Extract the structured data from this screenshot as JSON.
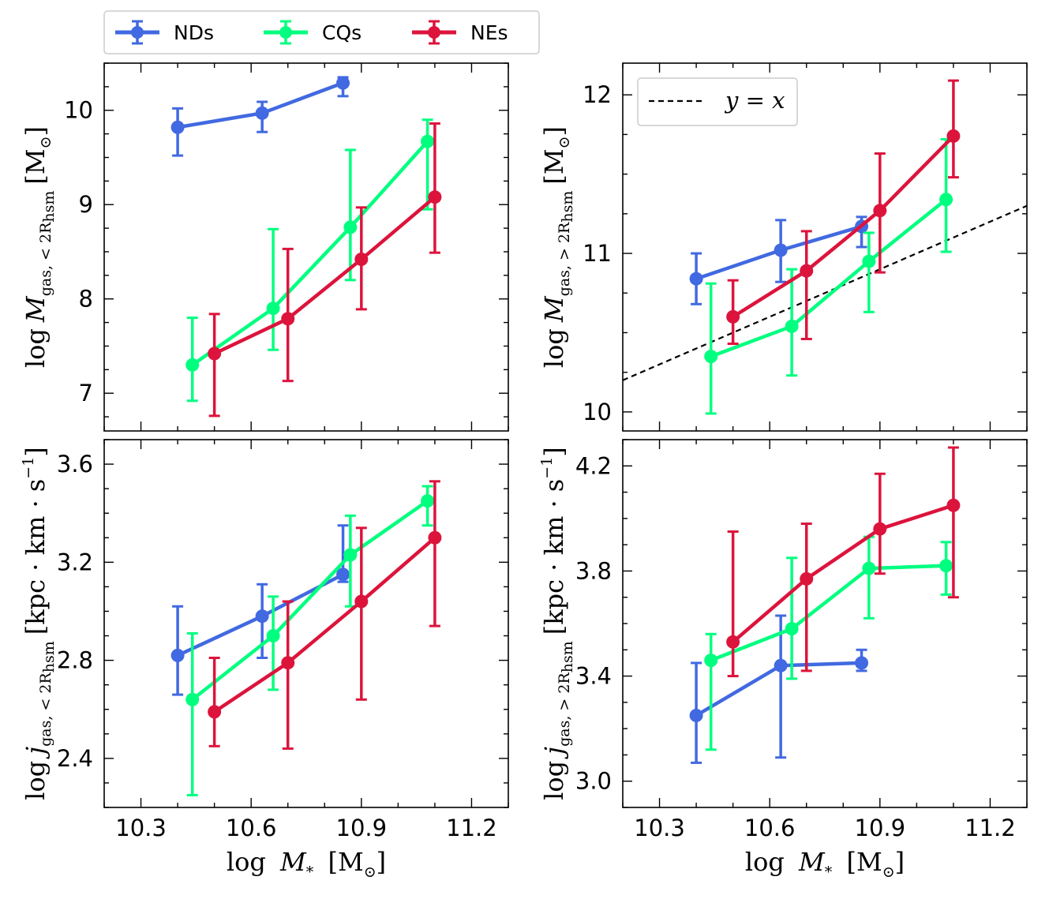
{
  "legend": {
    "entries": [
      {
        "name": "NDs",
        "color": "#4169e1"
      },
      {
        "name": "CQs",
        "color": "#00ff7f"
      },
      {
        "name": "NEs",
        "color": "#dc143c"
      }
    ]
  },
  "xlabel": {
    "pre": "log",
    "var": "M",
    "sub": "*",
    "unit": "[M",
    "unit_sub": "⊙",
    "unit_close": "]"
  },
  "chart_data": [
    {
      "type": "line",
      "id": "top-left",
      "xlim": [
        10.2,
        11.3
      ],
      "ylim": [
        6.6,
        10.5
      ],
      "xticks": [
        "10.3",
        "10.6",
        "10.9",
        "11.2"
      ],
      "xtick_values": [
        10.3,
        10.6,
        10.9,
        11.2
      ],
      "yticks": [
        "7",
        "8",
        "9",
        "10"
      ],
      "ytick_values": [
        7,
        8,
        9,
        10
      ],
      "show_xticklabels": false,
      "ylabel": {
        "pre": "log",
        "var": "M",
        "sub": "gas, < 2R",
        "subsub": "hsm",
        "unit": "[M",
        "unit_sub": "⊙",
        "unit_close": "]"
      },
      "series": [
        {
          "name": "NDs",
          "color": "#4169e1",
          "x": [
            10.4,
            10.63,
            10.85
          ],
          "y": [
            9.82,
            9.97,
            10.29
          ],
          "err_lo": [
            0.3,
            0.2,
            0.14
          ],
          "err_hi": [
            0.2,
            0.12,
            0.06
          ]
        },
        {
          "name": "CQs",
          "color": "#00ff7f",
          "x": [
            10.44,
            10.66,
            10.87,
            11.08
          ],
          "y": [
            7.3,
            7.9,
            8.76,
            9.67
          ],
          "err_lo": [
            0.38,
            0.44,
            0.56,
            0.72
          ],
          "err_hi": [
            0.5,
            0.84,
            0.82,
            0.23
          ]
        },
        {
          "name": "NEs",
          "color": "#dc143c",
          "x": [
            10.5,
            10.7,
            10.9,
            11.1
          ],
          "y": [
            7.42,
            7.79,
            8.42,
            9.08
          ],
          "err_lo": [
            0.66,
            0.66,
            0.53,
            0.59
          ],
          "err_hi": [
            0.42,
            0.74,
            0.55,
            0.78
          ]
        }
      ]
    },
    {
      "type": "line",
      "id": "top-right",
      "xlim": [
        10.2,
        11.3
      ],
      "ylim": [
        9.88,
        12.2
      ],
      "xticks": [
        "10.3",
        "10.6",
        "10.9",
        "11.2"
      ],
      "xtick_values": [
        10.3,
        10.6,
        10.9,
        11.2
      ],
      "yticks": [
        "10",
        "11",
        "12"
      ],
      "ytick_values": [
        10,
        11,
        12
      ],
      "show_xticklabels": false,
      "ylabel": {
        "pre": "log",
        "var": "M",
        "sub": "gas, > 2R",
        "subsub": "hsm",
        "unit": "[M",
        "unit_sub": "⊙",
        "unit_close": "]"
      },
      "reference_line": {
        "label": "y = x",
        "x": [
          10.2,
          11.3
        ],
        "y": [
          10.2,
          11.3
        ]
      },
      "series": [
        {
          "name": "NDs",
          "color": "#4169e1",
          "x": [
            10.4,
            10.63,
            10.85
          ],
          "y": [
            10.84,
            11.02,
            11.17
          ],
          "err_lo": [
            0.16,
            0.2,
            0.13
          ],
          "err_hi": [
            0.16,
            0.19,
            0.06
          ]
        },
        {
          "name": "CQs",
          "color": "#00ff7f",
          "x": [
            10.44,
            10.66,
            10.87,
            11.08
          ],
          "y": [
            10.35,
            10.54,
            10.95,
            11.34
          ],
          "err_lo": [
            0.36,
            0.31,
            0.32,
            0.33
          ],
          "err_hi": [
            0.46,
            0.36,
            0.18,
            0.38
          ]
        },
        {
          "name": "NEs",
          "color": "#dc143c",
          "x": [
            10.5,
            10.7,
            10.9,
            11.1
          ],
          "y": [
            10.6,
            10.89,
            11.27,
            11.74
          ],
          "err_lo": [
            0.17,
            0.43,
            0.39,
            0.26
          ],
          "err_hi": [
            0.23,
            0.25,
            0.36,
            0.35
          ]
        }
      ]
    },
    {
      "type": "line",
      "id": "bottom-left",
      "xlim": [
        10.2,
        11.3
      ],
      "ylim": [
        2.2,
        3.7
      ],
      "xticks": [
        "10.3",
        "10.6",
        "10.9",
        "11.2"
      ],
      "xtick_values": [
        10.3,
        10.6,
        10.9,
        11.2
      ],
      "yticks": [
        "2.4",
        "2.8",
        "3.2",
        "3.6"
      ],
      "ytick_values": [
        2.4,
        2.8,
        3.2,
        3.6
      ],
      "show_xticklabels": true,
      "ylabel": {
        "pre": "log",
        "var": "j",
        "sub": "gas, < 2R",
        "subsub": "hsm",
        "unit": "[kpc · km · s",
        "unit_sup": "−1",
        "unit_close": "]"
      },
      "series": [
        {
          "name": "NDs",
          "color": "#4169e1",
          "x": [
            10.4,
            10.63,
            10.85
          ],
          "y": [
            2.82,
            2.98,
            3.15
          ],
          "err_lo": [
            0.16,
            0.17,
            0.03
          ],
          "err_hi": [
            0.2,
            0.13,
            0.2
          ]
        },
        {
          "name": "CQs",
          "color": "#00ff7f",
          "x": [
            10.44,
            10.66,
            10.87,
            11.08
          ],
          "y": [
            2.64,
            2.9,
            3.23,
            3.45
          ],
          "err_lo": [
            0.39,
            0.22,
            0.21,
            0.1
          ],
          "err_hi": [
            0.27,
            0.16,
            0.16,
            0.06
          ]
        },
        {
          "name": "NEs",
          "color": "#dc143c",
          "x": [
            10.5,
            10.7,
            10.9,
            11.1
          ],
          "y": [
            2.59,
            2.79,
            3.04,
            3.3
          ],
          "err_lo": [
            0.14,
            0.35,
            0.4,
            0.36
          ],
          "err_hi": [
            0.22,
            0.25,
            0.3,
            0.23
          ]
        }
      ]
    },
    {
      "type": "line",
      "id": "bottom-right",
      "xlim": [
        10.2,
        11.3
      ],
      "ylim": [
        2.9,
        4.3
      ],
      "xticks": [
        "10.3",
        "10.6",
        "10.9",
        "11.2"
      ],
      "xtick_values": [
        10.3,
        10.6,
        10.9,
        11.2
      ],
      "yticks": [
        "3.0",
        "3.4",
        "3.8",
        "4.2"
      ],
      "ytick_values": [
        3.0,
        3.4,
        3.8,
        4.2
      ],
      "show_xticklabels": true,
      "ylabel": {
        "pre": "log",
        "var": "j",
        "sub": "gas, > 2R",
        "subsub": "hsm",
        "unit": "[kpc · km · s",
        "unit_sup": "−1",
        "unit_close": "]"
      },
      "series": [
        {
          "name": "NDs",
          "color": "#4169e1",
          "x": [
            10.4,
            10.63,
            10.85
          ],
          "y": [
            3.25,
            3.44,
            3.45
          ],
          "err_lo": [
            0.18,
            0.35,
            0.03
          ],
          "err_hi": [
            0.2,
            0.19,
            0.05
          ]
        },
        {
          "name": "CQs",
          "color": "#00ff7f",
          "x": [
            10.44,
            10.66,
            10.87,
            11.08
          ],
          "y": [
            3.46,
            3.58,
            3.81,
            3.82
          ],
          "err_lo": [
            0.34,
            0.19,
            0.19,
            0.11
          ],
          "err_hi": [
            0.1,
            0.27,
            0.12,
            0.09
          ]
        },
        {
          "name": "NEs",
          "color": "#dc143c",
          "x": [
            10.5,
            10.7,
            10.9,
            11.1
          ],
          "y": [
            3.53,
            3.77,
            3.96,
            4.05
          ],
          "err_lo": [
            0.13,
            0.35,
            0.17,
            0.35
          ],
          "err_hi": [
            0.42,
            0.21,
            0.21,
            0.22
          ]
        }
      ]
    }
  ]
}
